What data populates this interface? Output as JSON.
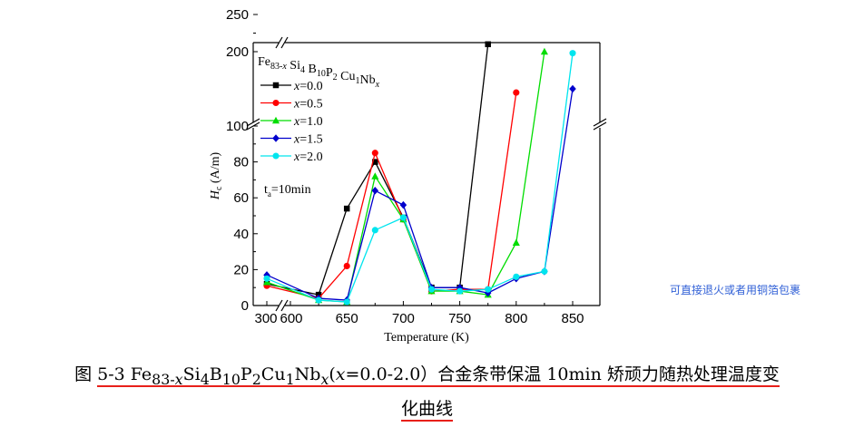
{
  "chart_data": {
    "type": "line",
    "xlabel": "Temperature (K)",
    "ylabel_main": "H",
    "ylabel_sub": "c",
    "ylabel_unit": " (A/m)",
    "x_ticks": [
      {
        "value": 300,
        "label": "300"
      },
      {
        "value": 600,
        "label": "600"
      },
      {
        "value": 650,
        "label": "650"
      },
      {
        "value": 700,
        "label": "700"
      },
      {
        "value": 750,
        "label": "750"
      },
      {
        "value": 800,
        "label": "800"
      },
      {
        "value": 850,
        "label": "850"
      }
    ],
    "y_ticks_lower": [
      {
        "value": 0,
        "label": "0"
      },
      {
        "value": 20,
        "label": "20"
      },
      {
        "value": 40,
        "label": "40"
      },
      {
        "value": 60,
        "label": "60"
      },
      {
        "value": 80,
        "label": "80"
      },
      {
        "value": 100,
        "label": "100"
      }
    ],
    "y_ticks_upper": [
      {
        "value": 200,
        "label": "200"
      },
      {
        "value": 250,
        "label": "250"
      }
    ],
    "y_break": 100,
    "x_break": [
      300,
      600
    ],
    "legend_title": {
      "parts": [
        {
          "t": "Fe",
          "s": "n"
        },
        {
          "t": "83-x",
          "s": "sub"
        },
        {
          "t": " Si",
          "s": "n"
        },
        {
          "t": "4",
          "s": "sub"
        },
        {
          "t": " B",
          "s": "n"
        },
        {
          "t": "10",
          "s": "sub"
        },
        {
          "t": "P",
          "s": "n"
        },
        {
          "t": "2",
          "s": "sub"
        },
        {
          "t": " Cu",
          "s": "n"
        },
        {
          "t": "1",
          "s": "sub"
        },
        {
          "t": "Nb",
          "s": "n"
        },
        {
          "t": "x",
          "s": "sub"
        }
      ]
    },
    "annotation": {
      "main": "t",
      "sub": "a",
      "rest": "=10min"
    },
    "series": [
      {
        "name": "x=0.0",
        "label_var": "x",
        "label_val": "=0.0",
        "color": "#000000",
        "marker": "square",
        "points": [
          [
            300,
            12
          ],
          [
            625,
            6
          ],
          [
            650,
            54
          ],
          [
            675,
            80
          ],
          [
            700,
            49
          ],
          [
            725,
            10
          ],
          [
            750,
            10
          ],
          [
            775,
            210
          ]
        ]
      },
      {
        "name": "x=0.5",
        "label_var": "x",
        "label_val": "=0.5",
        "color": "#ff0000",
        "marker": "circle",
        "points": [
          [
            300,
            11
          ],
          [
            625,
            4
          ],
          [
            650,
            22
          ],
          [
            675,
            85
          ],
          [
            700,
            48
          ],
          [
            725,
            8
          ],
          [
            750,
            9
          ],
          [
            775,
            9
          ],
          [
            800,
            145
          ]
        ]
      },
      {
        "name": "x=1.0",
        "label_var": "x",
        "label_val": "=1.0",
        "color": "#00dd00",
        "marker": "triangle",
        "points": [
          [
            300,
            13
          ],
          [
            625,
            3
          ],
          [
            650,
            2
          ],
          [
            675,
            72
          ],
          [
            700,
            48
          ],
          [
            725,
            8
          ],
          [
            750,
            8
          ],
          [
            775,
            6
          ],
          [
            800,
            35
          ],
          [
            825,
            200
          ]
        ]
      },
      {
        "name": "x=1.5",
        "label_var": "x",
        "label_val": "=1.5",
        "color": "#0000cc",
        "marker": "diamond",
        "points": [
          [
            300,
            17
          ],
          [
            625,
            4
          ],
          [
            650,
            3
          ],
          [
            675,
            64
          ],
          [
            700,
            56
          ],
          [
            725,
            10
          ],
          [
            750,
            10
          ],
          [
            775,
            7
          ],
          [
            800,
            15
          ],
          [
            825,
            19
          ],
          [
            850,
            150
          ]
        ]
      },
      {
        "name": "x=2.0",
        "label_var": "x",
        "label_val": "=2.0",
        "color": "#00e5ee",
        "marker": "circle",
        "points": [
          [
            300,
            15
          ],
          [
            625,
            3
          ],
          [
            650,
            2
          ],
          [
            675,
            42
          ],
          [
            700,
            49
          ],
          [
            725,
            9
          ],
          [
            750,
            8
          ],
          [
            775,
            9
          ],
          [
            800,
            16
          ],
          [
            825,
            19
          ],
          [
            850,
            198
          ]
        ]
      }
    ]
  },
  "side_note": "可直接退火或者用铜箔包裹",
  "caption": {
    "prefix": "图 ",
    "part1": "5-3 Fe",
    "sub1": "83-",
    "var1": "x",
    "part2": "Si",
    "sub2": "4",
    "part3": "B",
    "sub3": "10",
    "part4": "P",
    "sub4": "2",
    "part5": "Cu",
    "sub5": "1",
    "part6": "Nb",
    "var2": "x",
    "part7": "(",
    "var3": "x",
    "part8": "=0.0-2.0）合金条带保温 10min 矫顽力随热处理温度变",
    "line2": "化曲线"
  }
}
